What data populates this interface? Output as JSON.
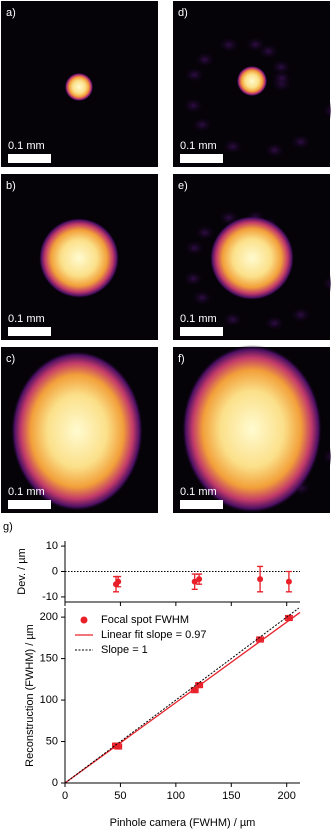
{
  "panels": [
    {
      "label": "a)",
      "scale_bar": "0.1 mm"
    },
    {
      "label": "b)",
      "scale_bar": "0.1 mm"
    },
    {
      "label": "c)",
      "scale_bar": "0.1 mm"
    },
    {
      "label": "d)",
      "scale_bar": "0.1 mm"
    },
    {
      "label": "e)",
      "scale_bar": "0.1 mm"
    },
    {
      "label": "f)",
      "scale_bar": "0.1 mm"
    }
  ],
  "figure_label": "g)",
  "chart_data": [
    {
      "type": "scatter",
      "ylabel": "Dev. / µm",
      "xlim": [
        0,
        212
      ],
      "xticks": [
        0,
        50,
        100,
        150,
        200
      ],
      "ylim": [
        -12,
        12
      ],
      "yticks": [
        -10,
        0,
        10
      ],
      "reference_line": 0,
      "series": [
        {
          "color": "#e8202a",
          "x": [
            46,
            48,
            117,
            121,
            176,
            202
          ],
          "values": [
            -5,
            -4,
            -4,
            -3,
            -3,
            -4
          ],
          "errors": [
            3,
            2,
            3,
            2,
            5,
            4
          ]
        }
      ]
    },
    {
      "type": "scatter",
      "xlabel": "Pinhole camera (FWHM) / µm",
      "ylabel": "Reconstruction (FWHM) / µm",
      "xlim": [
        0,
        212
      ],
      "xticks": [
        0,
        50,
        100,
        150,
        200
      ],
      "ylim": [
        0,
        211
      ],
      "yticks": [
        0,
        50,
        100,
        150,
        200
      ],
      "legend": "upper left",
      "series": [
        {
          "name": "Focal spot FWHM",
          "kind": "points",
          "color": "#e8202a",
          "x": [
            46,
            48,
            117,
            121,
            176,
            202
          ],
          "values": [
            45,
            44,
            112,
            118,
            173,
            199
          ],
          "x_errors": [
            3,
            3,
            3,
            3,
            3,
            3
          ],
          "errors": [
            3,
            3,
            3,
            3,
            3,
            3
          ]
        },
        {
          "name": "Linear fit slope = 0.97",
          "kind": "line",
          "color": "#e8202a",
          "x": [
            0,
            212
          ],
          "values": [
            0,
            205.64
          ]
        },
        {
          "name": "Slope = 1",
          "kind": "line",
          "color": "#000000",
          "dash": true,
          "x": [
            0,
            211
          ],
          "values": [
            0,
            211
          ]
        }
      ]
    }
  ]
}
